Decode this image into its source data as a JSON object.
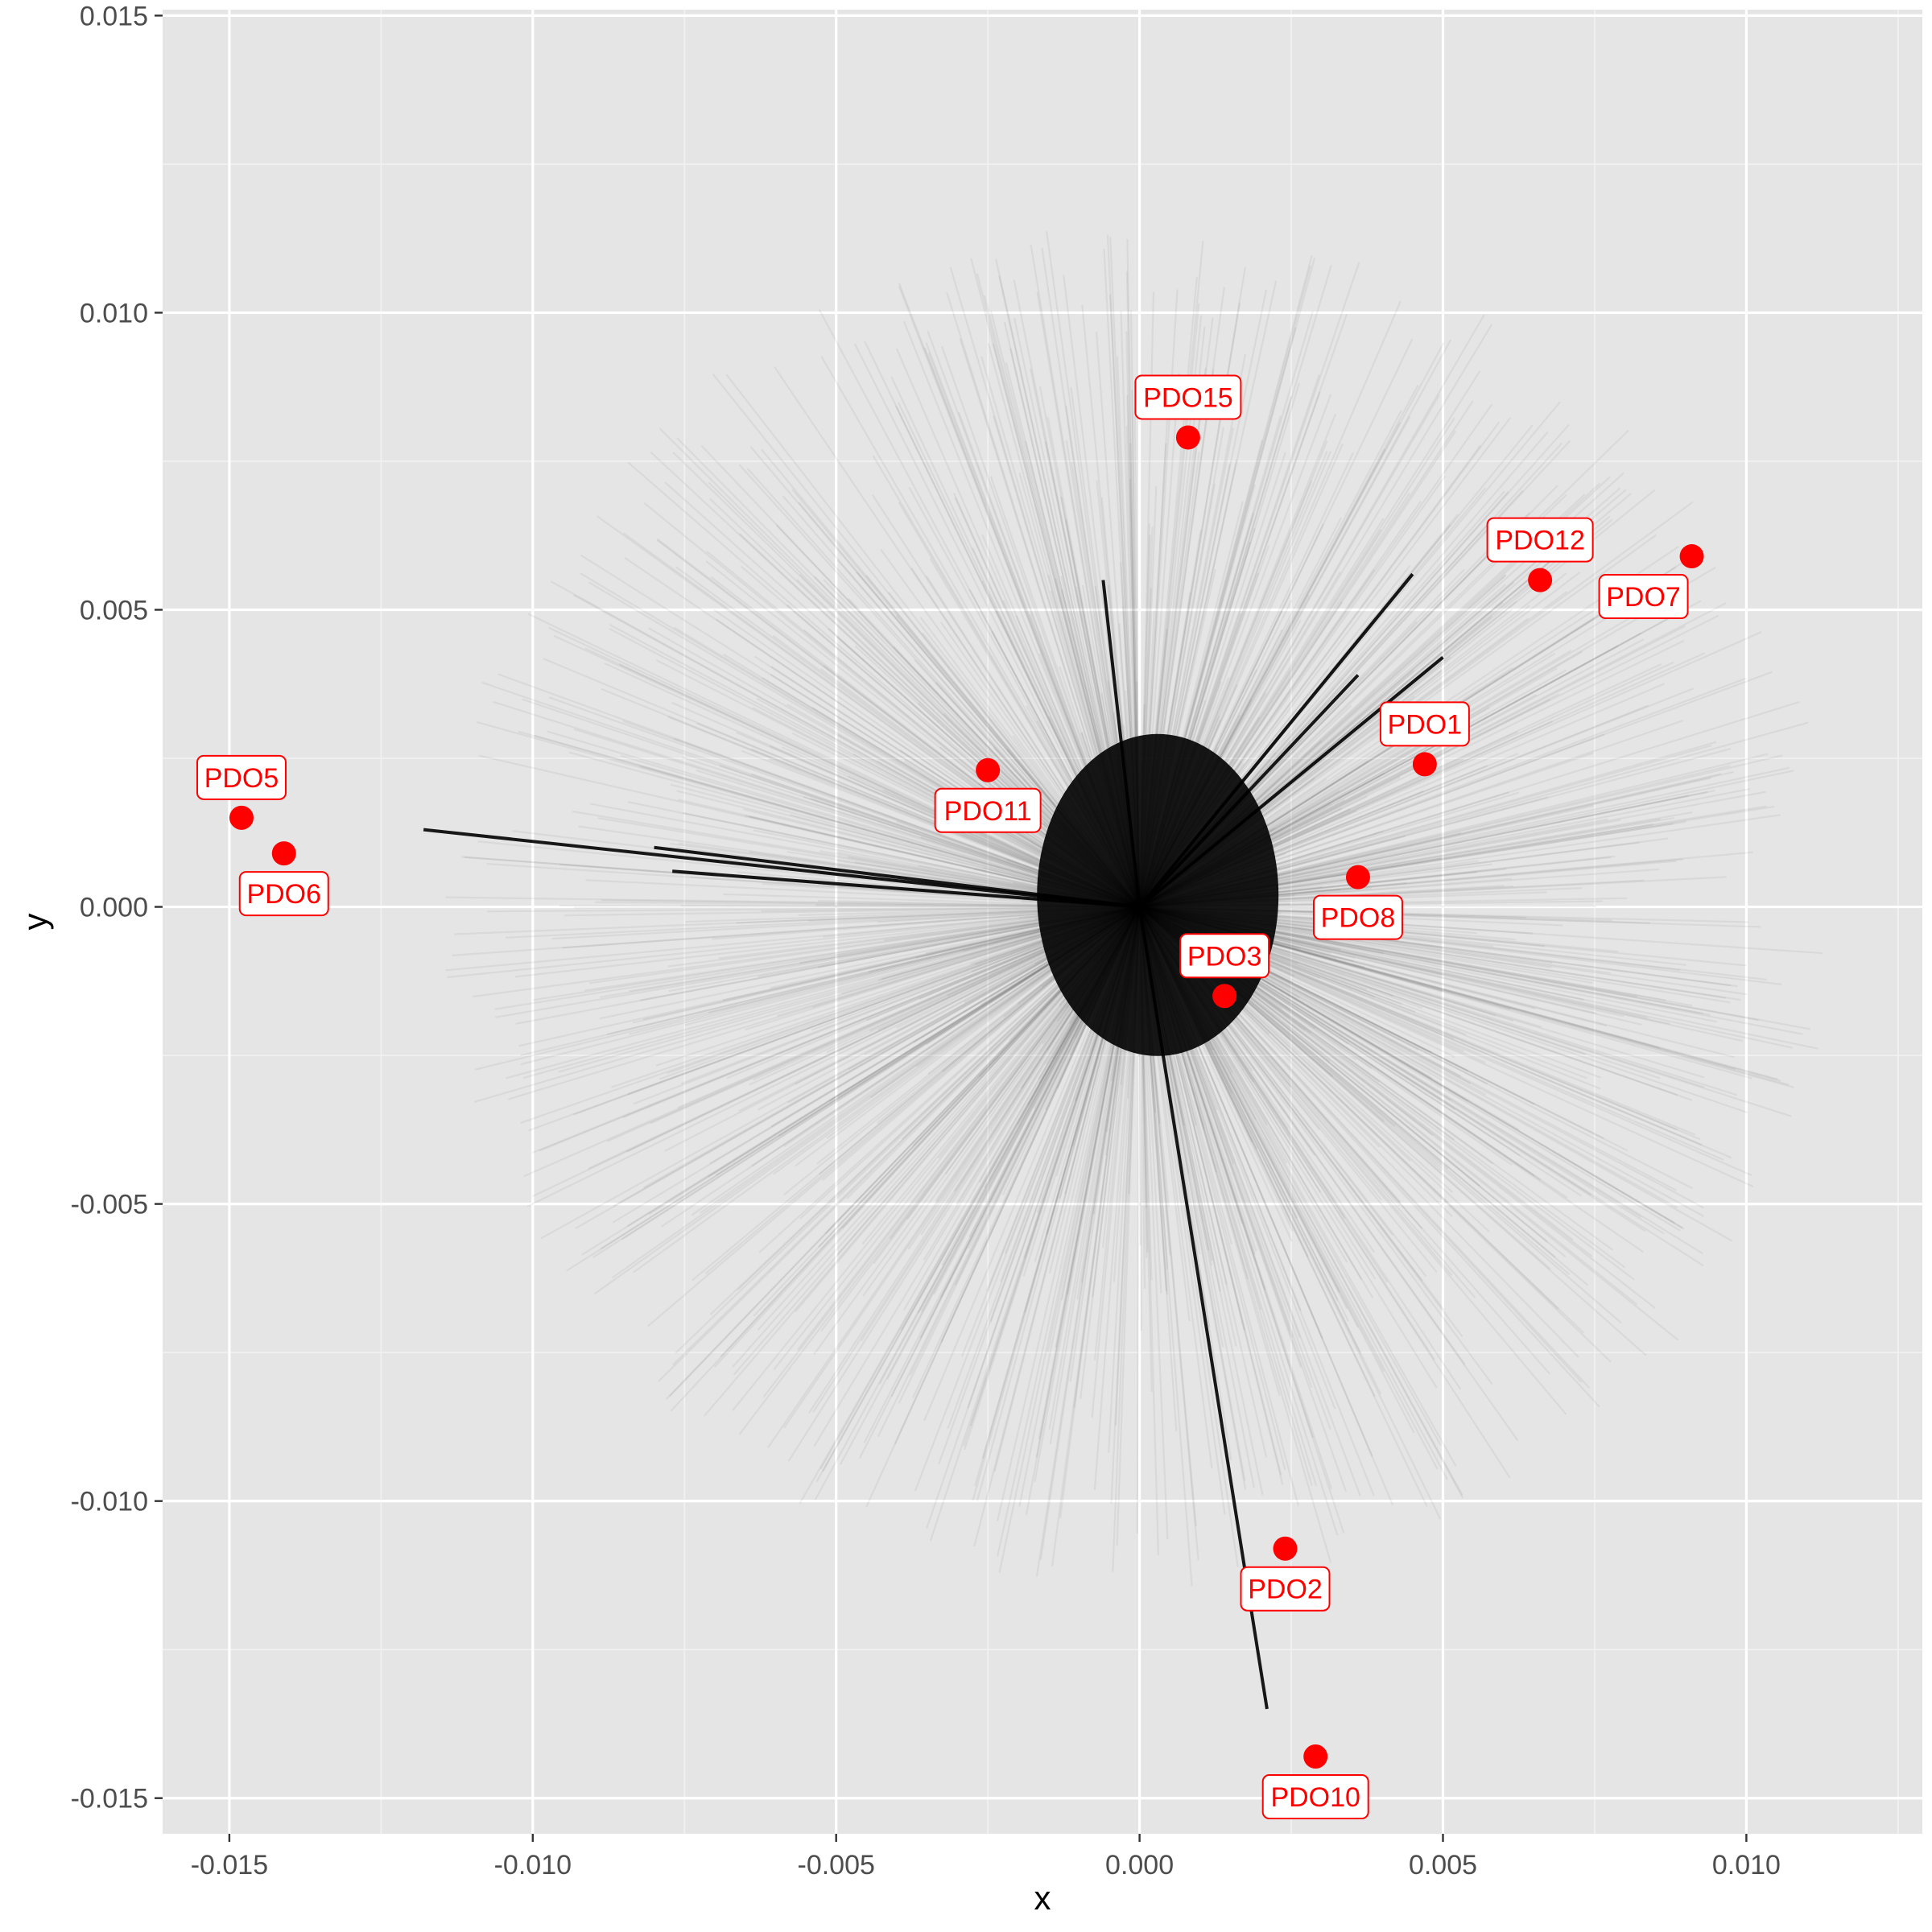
{
  "chart_data": {
    "type": "scatter",
    "title": "",
    "xlabel": "x",
    "ylabel": "y",
    "xlim": [
      -0.0161,
      0.0129
    ],
    "ylim": [
      -0.0156,
      0.0151
    ],
    "x_ticks": [
      -0.015,
      -0.01,
      -0.005,
      0.0,
      0.005,
      0.01
    ],
    "x_tick_labels": [
      "-0.015",
      "-0.010",
      "-0.005",
      "0.000",
      "0.005",
      "0.010"
    ],
    "y_ticks": [
      -0.015,
      -0.01,
      -0.005,
      0.0,
      0.005,
      0.01,
      0.015
    ],
    "y_tick_labels": [
      "-0.015",
      "-0.010",
      "-0.005",
      "0.000",
      "0.005",
      "0.010",
      "0.015"
    ],
    "grid": true,
    "background_color": "#e5e5e5",
    "point_color": "#ff0000",
    "line_color": "#000000",
    "background_lines": {
      "description_free": true,
      "origin": [
        0.0,
        0.0
      ],
      "approx_radius": 0.0115,
      "highlighted_spokes": [
        {
          "x": 0.0045,
          "y": 0.0056
        },
        {
          "x": -0.0118,
          "y": 0.0013
        },
        {
          "x": -0.008,
          "y": 0.001
        },
        {
          "x": -0.0077,
          "y": 0.0006
        },
        {
          "x": 0.0021,
          "y": -0.0135
        },
        {
          "x": 0.005,
          "y": 0.0042
        },
        {
          "x": 0.0036,
          "y": 0.0039
        },
        {
          "x": -0.0006,
          "y": 0.0055
        }
      ]
    },
    "points": [
      {
        "name": "PDO1",
        "x": 0.0047,
        "y": 0.0024,
        "label_pos": "above"
      },
      {
        "name": "PDO2",
        "x": 0.0024,
        "y": -0.0108,
        "label_pos": "below"
      },
      {
        "name": "PDO3",
        "x": 0.0014,
        "y": -0.0015,
        "label_pos": "above"
      },
      {
        "name": "PDO5",
        "x": -0.0148,
        "y": 0.0015,
        "label_pos": "above"
      },
      {
        "name": "PDO6",
        "x": -0.0141,
        "y": 0.0009,
        "label_pos": "below"
      },
      {
        "name": "PDO7",
        "x": 0.0091,
        "y": 0.0059,
        "label_pos": "below-left"
      },
      {
        "name": "PDO8",
        "x": 0.0036,
        "y": 0.0005,
        "label_pos": "below"
      },
      {
        "name": "PDO10",
        "x": 0.0029,
        "y": -0.0143,
        "label_pos": "below"
      },
      {
        "name": "PDO11",
        "x": -0.0025,
        "y": 0.0023,
        "label_pos": "below"
      },
      {
        "name": "PDO12",
        "x": 0.0066,
        "y": 0.0055,
        "label_pos": "above"
      },
      {
        "name": "PDO15",
        "x": 0.0008,
        "y": 0.0079,
        "label_pos": "above"
      }
    ]
  }
}
